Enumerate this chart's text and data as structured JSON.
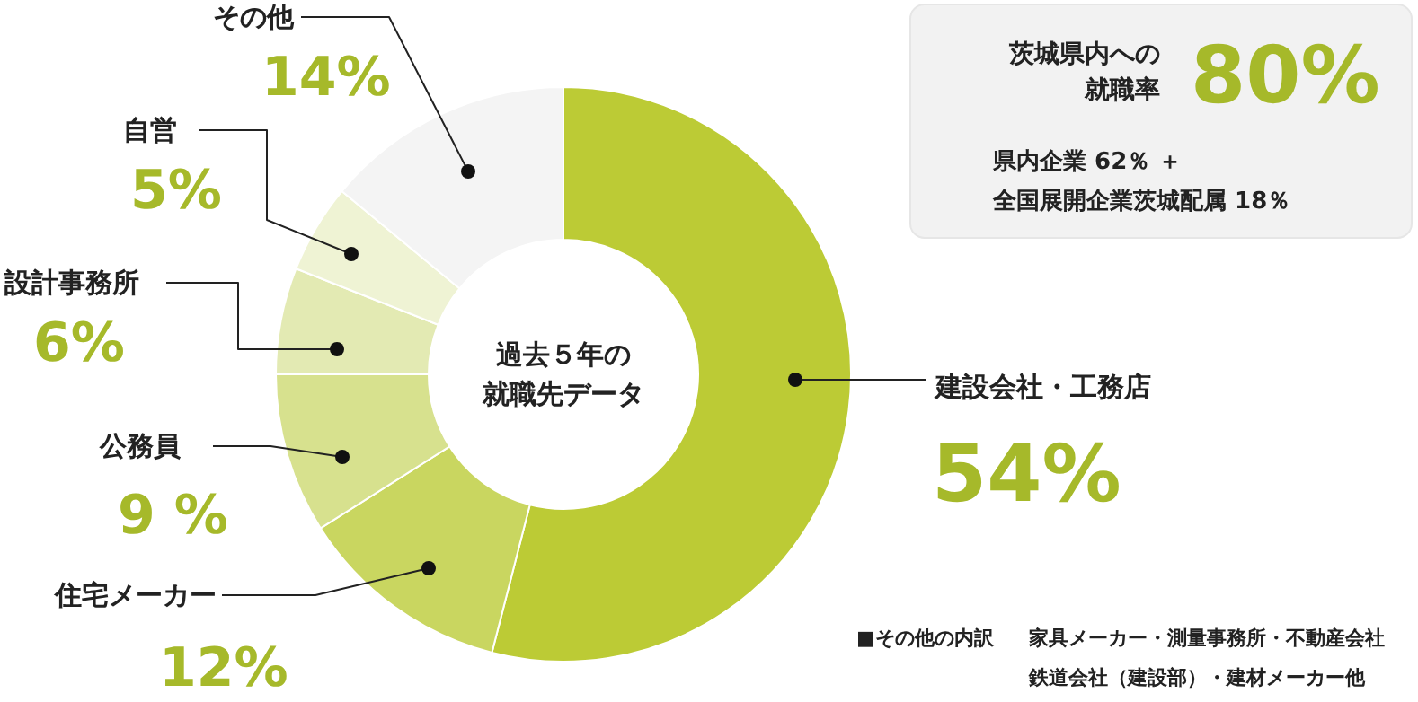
{
  "chart_data": {
    "type": "donut",
    "title": "過去５年の",
    "subtitle": "就職先データ",
    "categories": [
      "建設会社・工務店",
      "住宅メーカー",
      "公務員",
      "設計事務所",
      "自営",
      "その他"
    ],
    "values": [
      54,
      12,
      9,
      6,
      5,
      14
    ],
    "value_labels": [
      "54%",
      "12%",
      "9 %",
      "6%",
      "5%",
      "14%"
    ],
    "colors": [
      "#bccb35",
      "#c9d660",
      "#d7e18e",
      "#e3eab3",
      "#eff3d4",
      "#f4f4f4"
    ],
    "annotations": [
      "茨城県内への",
      "就職率",
      "80%",
      "県内企業 62％ ＋",
      "全国展開企業茨城配属 18％",
      "■その他の内訳",
      "家具メーカー・測量事務所・不動産会社",
      "鉄道会社（建設部）・建材メーカー他"
    ]
  }
}
